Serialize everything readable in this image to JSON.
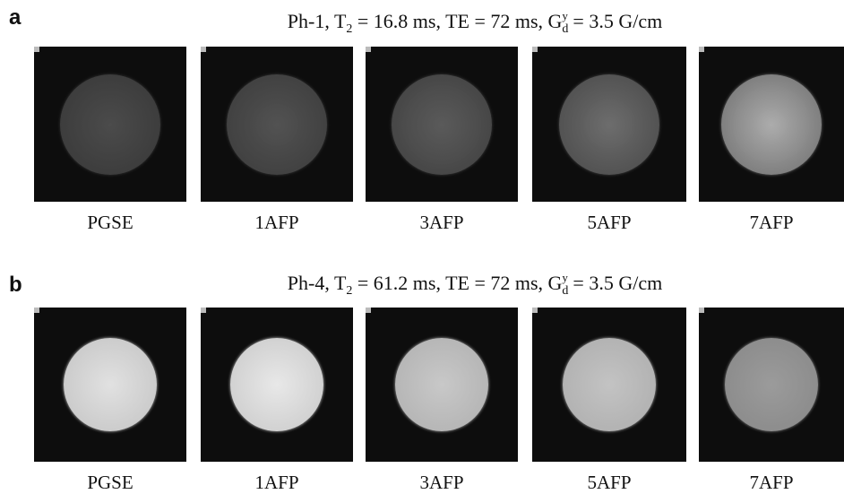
{
  "panels": [
    {
      "label": "a",
      "title": [
        "Ph-1, T",
        "2",
        " = 16.8 ms, TE = 72 ms, G",
        "d",
        "y",
        " = 3.5 G/cm"
      ],
      "captions": [
        "PGSE",
        "1AFP",
        "3AFP",
        "5AFP",
        "7AFP"
      ]
    },
    {
      "label": "b",
      "title": [
        "Ph-4, T",
        "2",
        " = 61.2 ms, TE = 72 ms, G",
        "d",
        "y",
        " = 3.5 G/cm"
      ],
      "captions": [
        "PGSE",
        "1AFP",
        "3AFP",
        "5AFP",
        "7AFP"
      ]
    }
  ]
}
